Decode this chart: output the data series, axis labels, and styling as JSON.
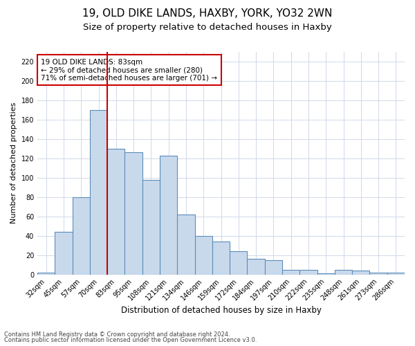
{
  "title1": "19, OLD DIKE LANDS, HAXBY, YORK, YO32 2WN",
  "title2": "Size of property relative to detached houses in Haxby",
  "xlabel": "Distribution of detached houses by size in Haxby",
  "ylabel": "Number of detached properties",
  "categories": [
    "32sqm",
    "45sqm",
    "57sqm",
    "70sqm",
    "83sqm",
    "95sqm",
    "108sqm",
    "121sqm",
    "134sqm",
    "146sqm",
    "159sqm",
    "172sqm",
    "184sqm",
    "197sqm",
    "210sqm",
    "222sqm",
    "235sqm",
    "248sqm",
    "261sqm",
    "273sqm",
    "286sqm"
  ],
  "values": [
    2,
    44,
    80,
    170,
    130,
    126,
    98,
    123,
    62,
    40,
    34,
    24,
    16,
    15,
    5,
    5,
    1,
    5,
    4,
    2,
    2
  ],
  "bar_color": "#c9d9ec",
  "bar_edge_color": "#5b8db8",
  "vline_color": "#cc0000",
  "annotation_text": "19 OLD DIKE LANDS: 83sqm\n← 29% of detached houses are smaller (280)\n71% of semi-detached houses are larger (701) →",
  "annotation_box_color": "#ffffff",
  "annotation_box_edge_color": "#cc0000",
  "ylim": [
    0,
    230
  ],
  "yticks": [
    0,
    20,
    40,
    60,
    80,
    100,
    120,
    140,
    160,
    180,
    200,
    220
  ],
  "footer1": "Contains HM Land Registry data © Crown copyright and database right 2024.",
  "footer2": "Contains public sector information licensed under the Open Government Licence v3.0.",
  "bg_color": "#ffffff",
  "grid_color": "#d0d8e8",
  "title1_fontsize": 11,
  "title2_fontsize": 9.5,
  "xlabel_fontsize": 8.5,
  "ylabel_fontsize": 8,
  "tick_fontsize": 7,
  "annotation_fontsize": 7.5,
  "footer_fontsize": 6
}
